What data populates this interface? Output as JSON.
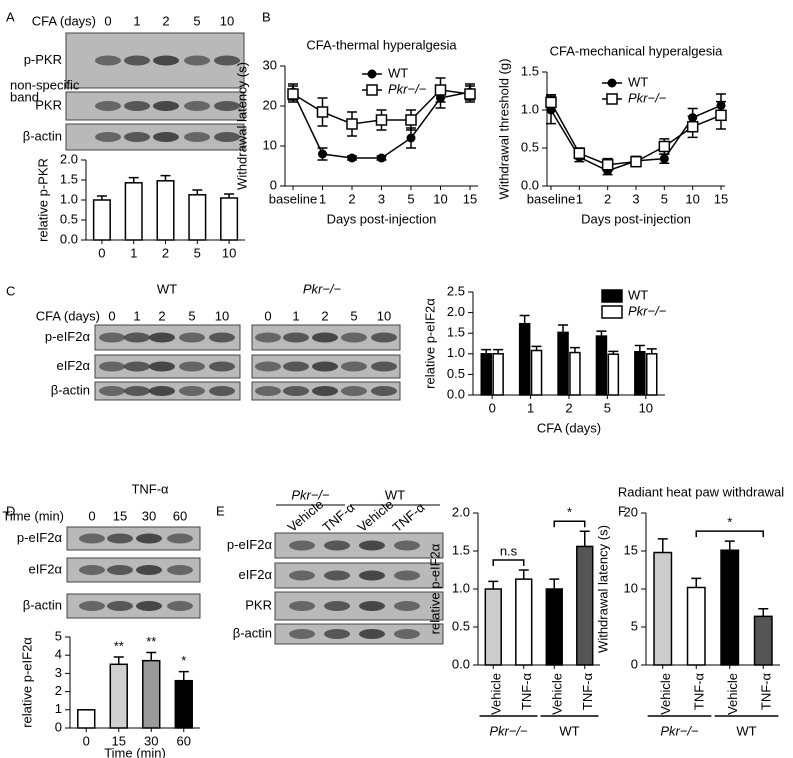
{
  "panel_labels": [
    "A",
    "B",
    "C",
    "D",
    "E",
    "F"
  ],
  "blots": [
    {
      "header": "CFA (days)",
      "lanes": [
        "0",
        "1",
        "2",
        "5",
        "10"
      ],
      "rows": [
        "p-PKR",
        "PKR",
        "β-actin"
      ],
      "note": [
        "non-specific",
        "band"
      ]
    },
    {
      "title": "WT",
      "header": "CFA (days)",
      "lanes": [
        "0",
        "1",
        "2",
        "5",
        "10"
      ],
      "rows": [
        "p-eIF2α",
        "eIF2α",
        "β-actin"
      ]
    },
    {
      "title": "Pkr−/−",
      "lanes": [
        "0",
        "1",
        "2",
        "5",
        "10"
      ]
    },
    {
      "title": "TNF-α",
      "header": "Time (min)",
      "lanes": [
        "0",
        "15",
        "30",
        "60"
      ],
      "rows": [
        "p-eIF2α",
        "eIF2α",
        "β-actin"
      ]
    },
    {
      "groups": [
        "Pkr−/−",
        "WT"
      ],
      "lanes": [
        "Vehicle",
        "TNF-α",
        "Vehicle",
        "TNF-α"
      ],
      "rows": [
        "p-eIF2α",
        "eIF2α",
        "PKR",
        "β-actin"
      ]
    }
  ],
  "chart_data": [
    {
      "type": "bar",
      "ylabel": "relative p-PKR",
      "categories": [
        "0",
        "1",
        "2",
        "5",
        "10"
      ],
      "series": [
        {
          "color": "#ffffff",
          "values": [
            1.0,
            1.43,
            1.48,
            1.13,
            1.05
          ],
          "errors": [
            0.1,
            0.13,
            0.13,
            0.12,
            0.1
          ]
        }
      ],
      "ylim": [
        0,
        2
      ],
      "yticks": [
        {
          "value": 0,
          "label": "0.0"
        },
        {
          "value": 0.5,
          "label": "0.5"
        },
        {
          "value": 1,
          "label": "1.0"
        },
        {
          "value": 1.5,
          "label": "1.5"
        },
        {
          "value": 2,
          "label": "2.0"
        }
      ]
    },
    {
      "type": "line",
      "title": "CFA-thermal hyperalgesia",
      "xlabel": "Days post-injection",
      "ylabel": "Withdrawal latency (s)",
      "categories": [
        "baseline",
        "1",
        "2",
        "3",
        "5",
        "10",
        "15"
      ],
      "series": [
        {
          "name": "WT",
          "color": "#000000",
          "marker": "circle",
          "values": [
            23.5,
            8,
            7,
            7,
            12,
            22,
            23.5
          ],
          "errors": [
            2,
            1.5,
            0.5,
            0.5,
            2.5,
            2.5,
            2
          ]
        },
        {
          "name": "Pkr−/−",
          "color": "#000000",
          "marker": "square",
          "values": [
            23,
            18.5,
            15.5,
            16.5,
            16.5,
            24,
            23
          ],
          "errors": [
            2,
            3.5,
            3,
            2.5,
            2.5,
            3,
            2
          ]
        }
      ],
      "ylim": [
        0,
        30
      ],
      "yticks": [
        0,
        10,
        20,
        30
      ],
      "legend": "top-right"
    },
    {
      "type": "line",
      "title": "CFA-mechanical hyperalgesia",
      "xlabel": "Days post-injection",
      "ylabel": "Withdrawal threshold (g)",
      "categories": [
        "baseline",
        "1",
        "2",
        "3",
        "5",
        "10",
        "15"
      ],
      "series": [
        {
          "name": "WT",
          "color": "#000000",
          "marker": "circle",
          "values": [
            1.0,
            0.38,
            0.2,
            0.33,
            0.36,
            0.9,
            1.06
          ],
          "errors": [
            0.18,
            0.06,
            0.05,
            0.06,
            0.06,
            0.12,
            0.15
          ]
        },
        {
          "name": "Pkr−/−",
          "color": "#000000",
          "marker": "square",
          "values": [
            1.1,
            0.43,
            0.28,
            0.32,
            0.52,
            0.78,
            0.93
          ],
          "errors": [
            0.1,
            0.07,
            0.08,
            0.06,
            0.1,
            0.14,
            0.18
          ]
        }
      ],
      "ylim": [
        0,
        1.5
      ],
      "yticks": [
        {
          "value": 0,
          "label": "0.0"
        },
        {
          "value": 0.5,
          "label": "0.5"
        },
        {
          "value": 1,
          "label": "1.0"
        },
        {
          "value": 1.5,
          "label": "1.5"
        }
      ],
      "legend": "top-right"
    },
    {
      "type": "bar",
      "xlabel": "CFA (days)",
      "ylabel": "relative p-eIF2α",
      "categories": [
        "0",
        "1",
        "2",
        "5",
        "10"
      ],
      "series": [
        {
          "name": "WT",
          "color": "#000000",
          "values": [
            1.0,
            1.73,
            1.52,
            1.43,
            1.05
          ],
          "errors": [
            0.1,
            0.2,
            0.18,
            0.12,
            0.15
          ]
        },
        {
          "name": "Pkr−/−",
          "color": "#ffffff",
          "values": [
            1.0,
            1.08,
            1.03,
            0.99,
            1.0
          ],
          "errors": [
            0.1,
            0.1,
            0.12,
            0.07,
            0.12
          ]
        }
      ],
      "ylim": [
        0,
        2.5
      ],
      "yticks": [
        {
          "value": 0,
          "label": "0.0"
        },
        {
          "value": 0.5,
          "label": "0.5"
        },
        {
          "value": 1,
          "label": "1.0"
        },
        {
          "value": 1.5,
          "label": "1.5"
        },
        {
          "value": 2,
          "label": "2.0"
        },
        {
          "value": 2.5,
          "label": "2.5"
        }
      ],
      "legend": "top-right"
    },
    {
      "type": "bar",
      "xlabel": "Time (min)",
      "ylabel": "relative p-eIF2α",
      "categories": [
        "0",
        "15",
        "30",
        "60"
      ],
      "series": [
        {
          "colors": [
            "#ffffff",
            "#d0d0d0",
            "#9a9a9a",
            "#000000"
          ],
          "values": [
            1,
            3.5,
            3.7,
            2.6
          ],
          "errors": [
            0,
            0.4,
            0.45,
            0.5
          ]
        }
      ],
      "ylim": [
        0,
        5
      ],
      "yticks": [
        0,
        1,
        2,
        3,
        4,
        5
      ],
      "annotations": [
        {
          "text": "**",
          "index": 1
        },
        {
          "text": "**",
          "index": 2
        },
        {
          "text": "*",
          "index": 3
        }
      ]
    },
    {
      "type": "bar",
      "ylabel": "relative p-eIF2α",
      "categories": [
        "Vehicle",
        "TNF-α",
        "Vehicle",
        "TNF-α"
      ],
      "series": [
        {
          "colors": [
            "#cccccc",
            "#ffffff",
            "#000000",
            "#555555"
          ],
          "values": [
            1.0,
            1.13,
            1.0,
            1.56
          ],
          "errors": [
            0.1,
            0.12,
            0.13,
            0.2
          ]
        }
      ],
      "ylim": [
        0,
        2
      ],
      "yticks": [
        {
          "value": 0,
          "label": "0.0"
        },
        {
          "value": 0.5,
          "label": "0.5"
        },
        {
          "value": 1,
          "label": "1.0"
        },
        {
          "value": 1.5,
          "label": "1.5"
        },
        {
          "value": 2,
          "label": "2.0"
        }
      ],
      "annotations": [
        {
          "text": "n.s",
          "span": [
            0,
            1
          ]
        },
        {
          "text": "*",
          "span": [
            2,
            3
          ]
        }
      ],
      "groups": [
        {
          "label": "Pkr−/−",
          "span": [
            0,
            1
          ]
        },
        {
          "label": "WT",
          "span": [
            2,
            3
          ]
        }
      ]
    },
    {
      "type": "bar",
      "title": "Radiant heat paw withdrawal",
      "ylabel": "Withdrawal latency (s)",
      "categories": [
        "Vehicle",
        "TNF-α",
        "Vehicle",
        "TNF-α"
      ],
      "series": [
        {
          "colors": [
            "#cccccc",
            "#ffffff",
            "#000000",
            "#555555"
          ],
          "values": [
            14.8,
            10.2,
            15.1,
            6.4
          ],
          "errors": [
            1.8,
            1.2,
            1.2,
            1.0
          ]
        }
      ],
      "ylim": [
        0,
        20
      ],
      "yticks": [
        0,
        5,
        10,
        15,
        20
      ],
      "annotations": [
        {
          "text": "*",
          "span": [
            1,
            3
          ]
        }
      ],
      "groups": [
        {
          "label": "Pkr−/−",
          "span": [
            0,
            1
          ]
        },
        {
          "label": "WT",
          "span": [
            2,
            3
          ]
        }
      ]
    }
  ]
}
